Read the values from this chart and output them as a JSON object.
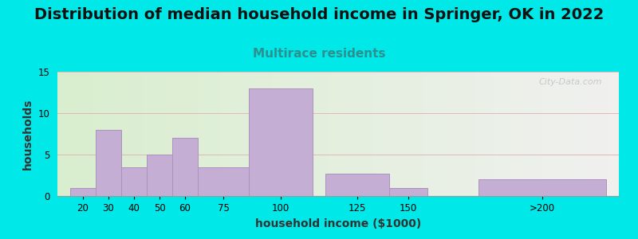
{
  "title": "Distribution of median household income in Springer, OK in 2022",
  "subtitle": "Multirace residents",
  "xlabel": "household income ($1000)",
  "ylabel": "households",
  "bar_labels": [
    "20",
    "30",
    "40",
    "50",
    "60",
    "75",
    "100",
    "125",
    "150",
    ">200"
  ],
  "bar_heights": [
    1,
    8,
    3.5,
    5,
    7,
    3.5,
    13,
    2.7,
    1,
    2
  ],
  "bar_color": "#c4aed4",
  "bar_edge_color": "#b090c0",
  "ylim": [
    0,
    15
  ],
  "yticks": [
    0,
    5,
    10,
    15
  ],
  "background_color": "#00e8e8",
  "plot_bg_color_left": "#d8eece",
  "plot_bg_color_right": "#f0f0ef",
  "title_fontsize": 14,
  "subtitle_fontsize": 11,
  "subtitle_color": "#2a9090",
  "axis_label_fontsize": 10,
  "watermark": "City-Data.com",
  "bar_lefts": [
    15,
    25,
    35,
    45,
    55,
    65,
    85,
    115,
    140,
    175
  ],
  "bar_widths": [
    10,
    10,
    10,
    10,
    10,
    20,
    25,
    25,
    15,
    50
  ],
  "xlim": [
    10,
    230
  ],
  "grid_color": "#e0b8b8",
  "grid_linewidth": 0.7
}
